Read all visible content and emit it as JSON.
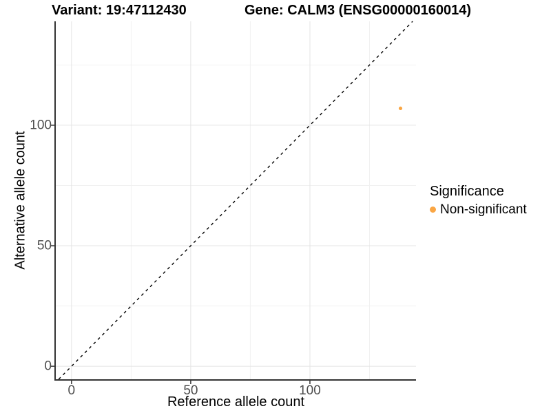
{
  "titles": {
    "variant": "Variant: 19:47112430",
    "gene": "Gene: CALM3 (ENSG00000160014)"
  },
  "axes": {
    "x_label": "Reference allele count",
    "y_label": "Alternative allele count"
  },
  "legend": {
    "title": "Significance",
    "items": [
      {
        "label": "Non-significant",
        "color": "#FAA644"
      }
    ]
  },
  "chart_data": {
    "type": "scatter",
    "title": "Variant: 19:47112430  |  Gene: CALM3 (ENSG00000160014)",
    "xlabel": "Reference allele count",
    "ylabel": "Alternative allele count",
    "x_ticks": [
      0,
      50,
      100
    ],
    "y_ticks": [
      0,
      50,
      100
    ],
    "x_minor_ticks": [
      25,
      75,
      125
    ],
    "y_minor_ticks": [
      25,
      75,
      125
    ],
    "xlim": [
      -6.6,
      144.5
    ],
    "ylim": [
      -5.4,
      143.1
    ],
    "grid": true,
    "legend_position": "right",
    "points": [
      {
        "x": 138,
        "y": 107,
        "series": "Non-significant",
        "color": "#FAA644",
        "radius": 2.6
      }
    ],
    "reference_line": {
      "type": "identity",
      "slope": 1,
      "intercept": 0,
      "style": "dashed",
      "color": "#000000"
    },
    "colors": {
      "background": "#ffffff",
      "panel_background": "#ffffff",
      "axis": "#333333",
      "tick_label": "#4d4d4d",
      "grid_major": "#e4e4e4",
      "grid_minor": "#f1f1f1"
    }
  }
}
